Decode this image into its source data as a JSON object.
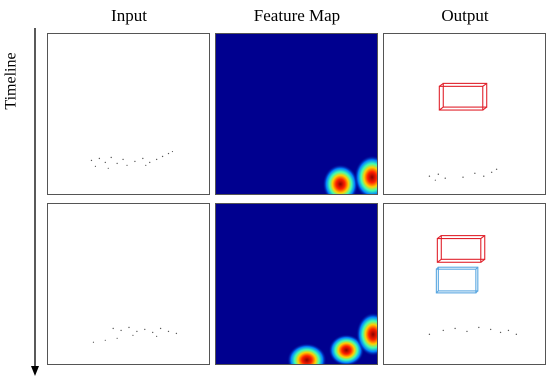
{
  "headers": {
    "input": "Input",
    "feature_map": "Feature Map",
    "output": "Output"
  },
  "axis": {
    "label": "Timeline"
  },
  "colors": {
    "feature_background": "#00008f",
    "box_red": "#e0202a",
    "box_blue": "#58a6e0",
    "panel_border": "#555555",
    "point_color": "#555555"
  },
  "rows": [
    {
      "input_panel": "point-cloud-frame-1",
      "feature_panel": "heatmap-frame-1",
      "output_panel": "detections-frame-1",
      "detections": [
        {
          "class_color": "red"
        }
      ]
    },
    {
      "input_panel": "point-cloud-frame-2",
      "feature_panel": "heatmap-frame-2",
      "output_panel": "detections-frame-2",
      "detections": [
        {
          "class_color": "red"
        },
        {
          "class_color": "blue"
        }
      ]
    }
  ]
}
